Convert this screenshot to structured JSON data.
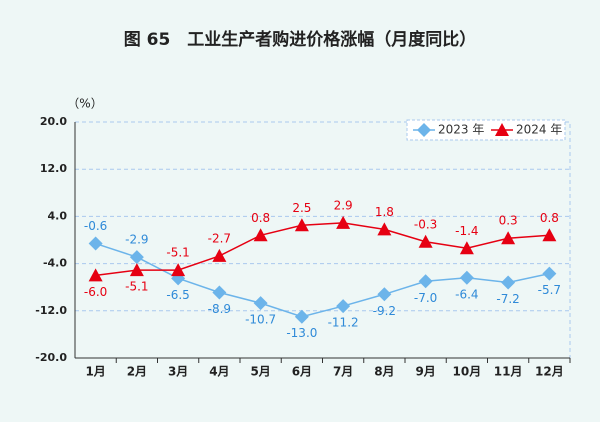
{
  "chart_data": {
    "type": "line",
    "title": "图 65　工业生产者购进价格涨幅（月度同比）",
    "y_label": "（%）",
    "categories": [
      "1月",
      "2月",
      "3月",
      "4月",
      "5月",
      "6月",
      "7月",
      "8月",
      "9月",
      "10月",
      "11月",
      "12月"
    ],
    "series": [
      {
        "name": "2023 年",
        "color": "#6cb4ea",
        "label_color": "#2f8ad8",
        "marker": "diamond",
        "values": [
          -0.6,
          -2.9,
          -6.5,
          -8.9,
          -10.7,
          -13.0,
          -11.2,
          -9.2,
          -7.0,
          -6.4,
          -7.2,
          -5.7
        ],
        "value_labels": [
          "-0.6",
          "-2.9",
          "-6.5",
          "-8.9",
          "-10.7",
          "-13.0",
          "-11.2",
          "-9.2",
          "-7.0",
          "-6.4",
          "-7.2",
          "-5.7"
        ]
      },
      {
        "name": "2024 年",
        "color": "#e60012",
        "label_color": "#e60012",
        "marker": "triangle",
        "values": [
          -6.0,
          -5.1,
          -5.1,
          -2.7,
          0.8,
          2.5,
          2.9,
          1.8,
          -0.3,
          -1.4,
          0.3,
          0.8
        ],
        "value_labels": [
          "-6.0",
          "-5.1",
          "-5.1",
          "-2.7",
          "0.8",
          "2.5",
          "2.9",
          "1.8",
          "-0.3",
          "-1.4",
          "0.3",
          "0.8"
        ]
      }
    ],
    "ylim": [
      -20,
      20
    ],
    "yticks": [
      {
        "value": -20,
        "label": "-20.0"
      },
      {
        "value": -12,
        "label": "-12.0"
      },
      {
        "value": -4,
        "label": "-4.0"
      },
      {
        "value": 4,
        "label": "4.0"
      },
      {
        "value": 12,
        "label": "12.0"
      },
      {
        "value": 20,
        "label": "20.0"
      }
    ],
    "grid": true,
    "legend": "top-right"
  }
}
